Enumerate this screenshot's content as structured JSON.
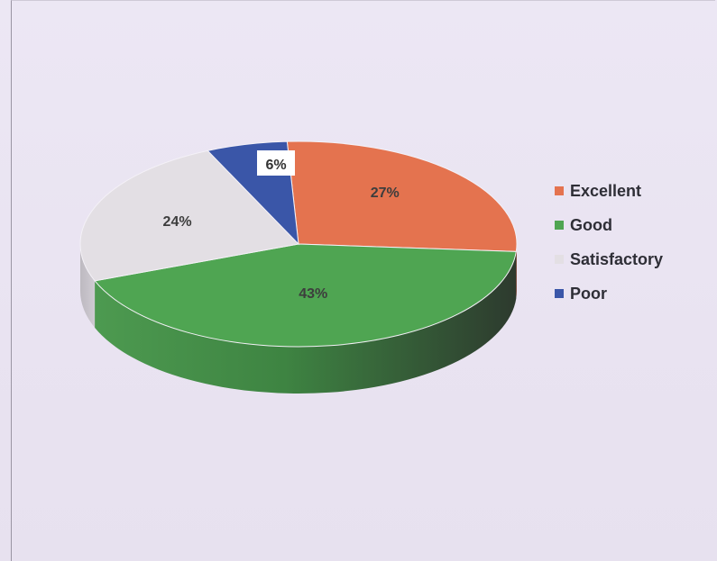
{
  "chart_data": {
    "type": "pie",
    "categories": [
      "Excellent",
      "Good",
      "Satisfactory",
      "Poor"
    ],
    "values": [
      27,
      43,
      24,
      6
    ],
    "data_labels": [
      "27%",
      "43%",
      "24%",
      "6%"
    ],
    "colors": [
      "#e4734f",
      "#4fa552",
      "#e3dfe4",
      "#3a56a8"
    ],
    "legend_position": "right",
    "style": "3d"
  }
}
